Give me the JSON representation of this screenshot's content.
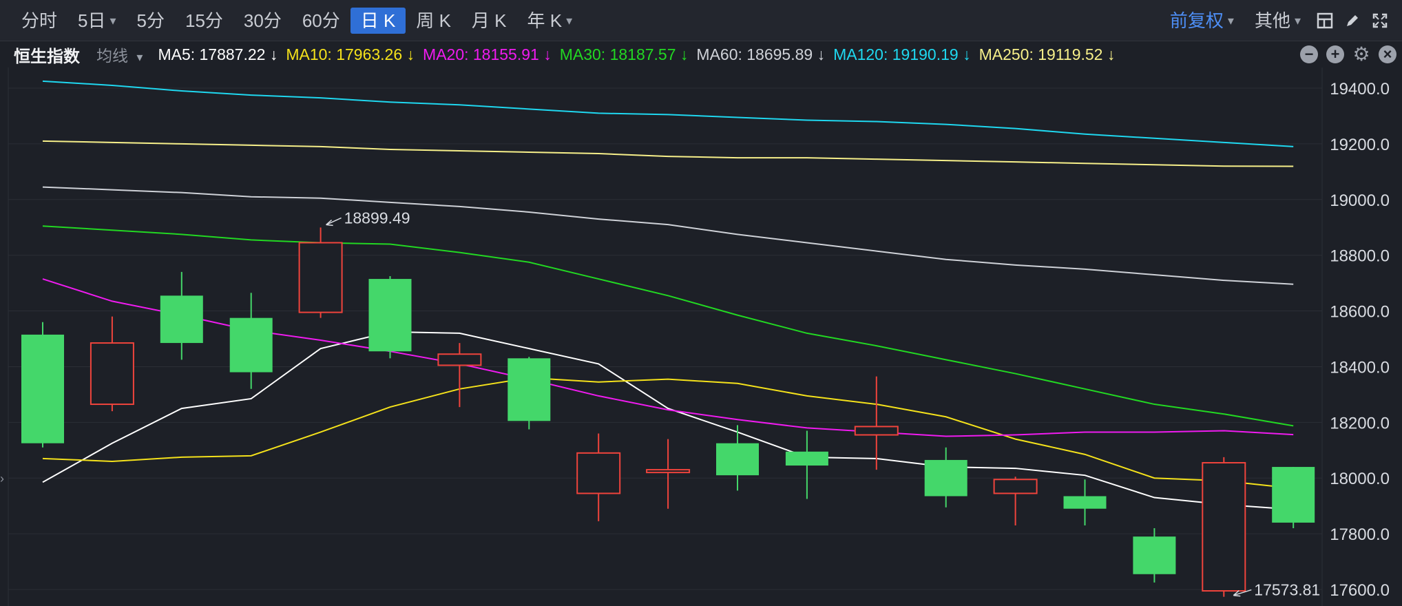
{
  "toolbar": {
    "left_tabs": [
      {
        "label": "分时"
      },
      {
        "label": "5日",
        "dropdown": true
      },
      {
        "label": "5分"
      },
      {
        "label": "15分"
      },
      {
        "label": "30分"
      },
      {
        "label": "60分"
      },
      {
        "label": "日 K",
        "active": true
      },
      {
        "label": "周 K"
      },
      {
        "label": "月 K"
      },
      {
        "label": "年 K",
        "dropdown": true
      }
    ],
    "adjust_label": "前复权",
    "other_label": "其他",
    "icons": [
      "grid-icon",
      "pen-icon",
      "fullscreen-icon"
    ]
  },
  "indicator_bar": {
    "title": "恒生指数",
    "selector": "均线",
    "ma": [
      {
        "label": "MA5: 17887.22 ↓",
        "color": "#ffffff"
      },
      {
        "label": "MA10: 17963.26 ↓",
        "color": "#f5e21b"
      },
      {
        "label": "MA20: 18155.91 ↓",
        "color": "#f01bf0"
      },
      {
        "label": "MA30: 18187.57 ↓",
        "color": "#22d822"
      },
      {
        "label": "MA60: 18695.89 ↓",
        "color": "#cfd2d8"
      },
      {
        "label": "MA120: 19190.19 ↓",
        "color": "#1fd8f0"
      },
      {
        "label": "MA250: 19119.52 ↓",
        "color": "#f7f08a"
      }
    ],
    "icons": [
      "minus-icon",
      "plus-icon",
      "gear-icon",
      "close-icon"
    ]
  },
  "chart_data": {
    "type": "candlestick",
    "ylim": [
      17570,
      19440
    ],
    "yticks": [
      "19400.0",
      "19200.0",
      "19000.0",
      "18800.0",
      "18600.0",
      "18400.0",
      "18200.0",
      "18000.0",
      "17800.0",
      "17600.0"
    ],
    "up_color": "#f0443c",
    "down_color": "#44d76a",
    "candles": [
      {
        "open": 18515,
        "high": 18560,
        "low": 18110,
        "close": 18125
      },
      {
        "open": 18265,
        "high": 18580,
        "low": 18240,
        "close": 18485
      },
      {
        "open": 18655,
        "high": 18740,
        "low": 18425,
        "close": 18485
      },
      {
        "open": 18575,
        "high": 18665,
        "low": 18320,
        "close": 18380
      },
      {
        "open": 18595,
        "high": 18899.49,
        "low": 18575,
        "close": 18845
      },
      {
        "open": 18715,
        "high": 18725,
        "low": 18430,
        "close": 18455
      },
      {
        "open": 18405,
        "high": 18485,
        "low": 18255,
        "close": 18445
      },
      {
        "open": 18430,
        "high": 18435,
        "low": 18175,
        "close": 18205
      },
      {
        "open": 17945,
        "high": 18160,
        "low": 17845,
        "close": 18090
      },
      {
        "open": 18020,
        "high": 18140,
        "low": 17890,
        "close": 18030
      },
      {
        "open": 18125,
        "high": 18190,
        "low": 17955,
        "close": 18010
      },
      {
        "open": 18095,
        "high": 18170,
        "low": 17925,
        "close": 18045
      },
      {
        "open": 18155,
        "high": 18365,
        "low": 18030,
        "close": 18185
      },
      {
        "open": 18065,
        "high": 18110,
        "low": 17895,
        "close": 17935
      },
      {
        "open": 17945,
        "high": 18005,
        "low": 17830,
        "close": 17995
      },
      {
        "open": 17935,
        "high": 17995,
        "low": 17830,
        "close": 17890
      },
      {
        "open": 17790,
        "high": 17820,
        "low": 17625,
        "close": 17655
      },
      {
        "open": 17595,
        "high": 18075,
        "low": 17573.81,
        "close": 18055
      },
      {
        "open": 18040,
        "high": 18040,
        "low": 17820,
        "close": 17840
      }
    ],
    "series": [
      {
        "name": "MA5",
        "color": "#ffffff",
        "values": [
          17985,
          18125,
          18250,
          18285,
          18465,
          18525,
          18520,
          18465,
          18410,
          18250,
          18165,
          18075,
          18070,
          18040,
          18035,
          18010,
          17930,
          17905,
          17887.22
        ]
      },
      {
        "name": "MA10",
        "color": "#f5e21b",
        "values": [
          18070,
          18060,
          18075,
          18080,
          18165,
          18255,
          18320,
          18360,
          18345,
          18355,
          18340,
          18295,
          18265,
          18220,
          18140,
          18085,
          18000,
          17990,
          17963.26
        ]
      },
      {
        "name": "MA20",
        "color": "#f01bf0",
        "values": [
          18715,
          18635,
          18585,
          18530,
          18495,
          18455,
          18410,
          18355,
          18295,
          18245,
          18210,
          18180,
          18165,
          18150,
          18155,
          18165,
          18165,
          18170,
          18155.91
        ]
      },
      {
        "name": "MA30",
        "color": "#22d822",
        "values": [
          18905,
          18890,
          18875,
          18855,
          18845,
          18840,
          18810,
          18775,
          18715,
          18655,
          18585,
          18520,
          18475,
          18425,
          18375,
          18320,
          18265,
          18230,
          18187.57
        ]
      },
      {
        "name": "MA60",
        "color": "#cfd2d8",
        "values": [
          19045,
          19035,
          19025,
          19010,
          19005,
          18990,
          18975,
          18955,
          18930,
          18910,
          18875,
          18845,
          18815,
          18785,
          18765,
          18750,
          18730,
          18710,
          18695.89
        ]
      },
      {
        "name": "MA120",
        "color": "#1fd8f0",
        "values": [
          19425,
          19410,
          19390,
          19375,
          19365,
          19350,
          19340,
          19325,
          19310,
          19305,
          19295,
          19285,
          19280,
          19270,
          19255,
          19235,
          19220,
          19205,
          19190.19
        ]
      },
      {
        "name": "MA250",
        "color": "#f7f08a",
        "values": [
          19210,
          19205,
          19200,
          19195,
          19190,
          19180,
          19175,
          19170,
          19165,
          19155,
          19150,
          19150,
          19145,
          19140,
          19135,
          19130,
          19125,
          19120,
          19119.52
        ]
      }
    ],
    "annotations": [
      {
        "text": "18899.49",
        "candle": 4,
        "value": 18899.49
      },
      {
        "text": "17573.81",
        "candle": 17,
        "value": 17573.81
      }
    ],
    "grid": true
  }
}
